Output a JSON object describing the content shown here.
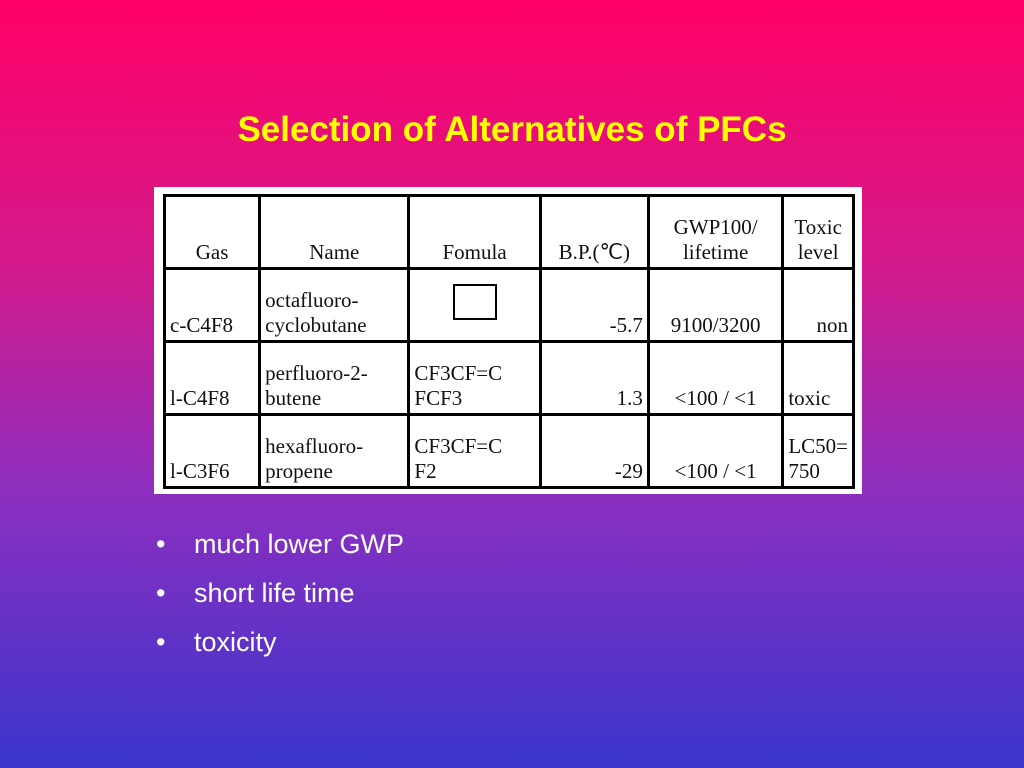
{
  "slide": {
    "title": "Selection of Alternatives of PFCs"
  },
  "table": {
    "headers": {
      "gas": "Gas",
      "name": "Name",
      "formula": "Fomula",
      "bp": "B.P.(℃)",
      "gwp_line1": "GWP100/",
      "gwp_line2": "lifetime",
      "toxic_line1": "Toxic",
      "toxic_line2": "level"
    },
    "rows": [
      {
        "gas": "c-C4F8",
        "name_line1": "octafluoro-",
        "name_line2": "cyclobutane",
        "formula_line1": "",
        "formula_line2": "",
        "bp": "-5.7",
        "gwp": "9100/3200",
        "toxic_line1": "",
        "toxic_line2": "non"
      },
      {
        "gas": "l-C4F8",
        "name_line1": "perfluoro-2-",
        "name_line2": "butene",
        "formula_line1": "CF3CF=C",
        "formula_line2": "FCF3",
        "bp": "1.3",
        "gwp": "<100 / <1",
        "toxic_line1": "",
        "toxic_line2": "toxic"
      },
      {
        "gas": "l-C3F6",
        "name_line1": "hexafluoro-",
        "name_line2": "propene",
        "formula_line1": "CF3CF=C",
        "formula_line2": "F2",
        "bp": "-29",
        "gwp": "<100 / <1",
        "toxic_line1": "LC50=",
        "toxic_line2": "750"
      }
    ]
  },
  "bullets": {
    "marker": "•",
    "items": [
      "much lower GWP",
      "short life time",
      "toxicity"
    ]
  }
}
